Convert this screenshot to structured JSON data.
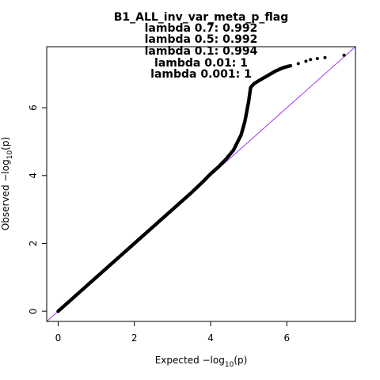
{
  "chart_data": {
    "type": "scatter",
    "title_lines": [
      "B1_ALL_inv_var_meta_p_flag",
      "lambda 0.7: 0.992",
      "lambda 0.5: 0.992",
      "lambda 0.1: 0.994",
      "lambda 0.01: 1",
      "lambda 0.001: 1"
    ],
    "xlabel": {
      "prefix": "Expected  −log",
      "sub": "10",
      "suffix": "(p)"
    },
    "ylabel": {
      "prefix": "Observed  −log",
      "sub": "10",
      "suffix": "(p)"
    },
    "xlim": [
      -0.3,
      7.8
    ],
    "ylim": [
      -0.3,
      7.8
    ],
    "xticks": [
      0,
      2,
      4,
      6
    ],
    "yticks": [
      0,
      2,
      4,
      6
    ],
    "xtick_labels": [
      "0",
      "2",
      "4",
      "6"
    ],
    "ytick_labels": [
      "0",
      "2",
      "4",
      "6"
    ],
    "reference_line": {
      "slope": 1,
      "intercept": 0,
      "color": "#9b30ff"
    },
    "point_color": "#000000",
    "points": [
      [
        0.0,
        0.0
      ],
      [
        0.2,
        0.2
      ],
      [
        0.5,
        0.5
      ],
      [
        1.0,
        1.0
      ],
      [
        1.5,
        1.5
      ],
      [
        2.0,
        2.0
      ],
      [
        2.5,
        2.5
      ],
      [
        3.0,
        3.0
      ],
      [
        3.5,
        3.5
      ],
      [
        3.8,
        3.82
      ],
      [
        4.0,
        4.05
      ],
      [
        4.2,
        4.25
      ],
      [
        4.4,
        4.48
      ],
      [
        4.6,
        4.75
      ],
      [
        4.8,
        5.2
      ],
      [
        4.9,
        5.6
      ],
      [
        5.0,
        6.2
      ],
      [
        5.05,
        6.6
      ],
      [
        5.15,
        6.72
      ],
      [
        5.3,
        6.82
      ],
      [
        5.5,
        6.95
      ],
      [
        5.7,
        7.08
      ],
      [
        5.9,
        7.18
      ],
      [
        6.1,
        7.24
      ],
      [
        6.3,
        7.3
      ],
      [
        6.5,
        7.37
      ],
      [
        6.62,
        7.42
      ],
      [
        6.8,
        7.45
      ],
      [
        7.0,
        7.48
      ],
      [
        7.5,
        7.55
      ]
    ]
  }
}
